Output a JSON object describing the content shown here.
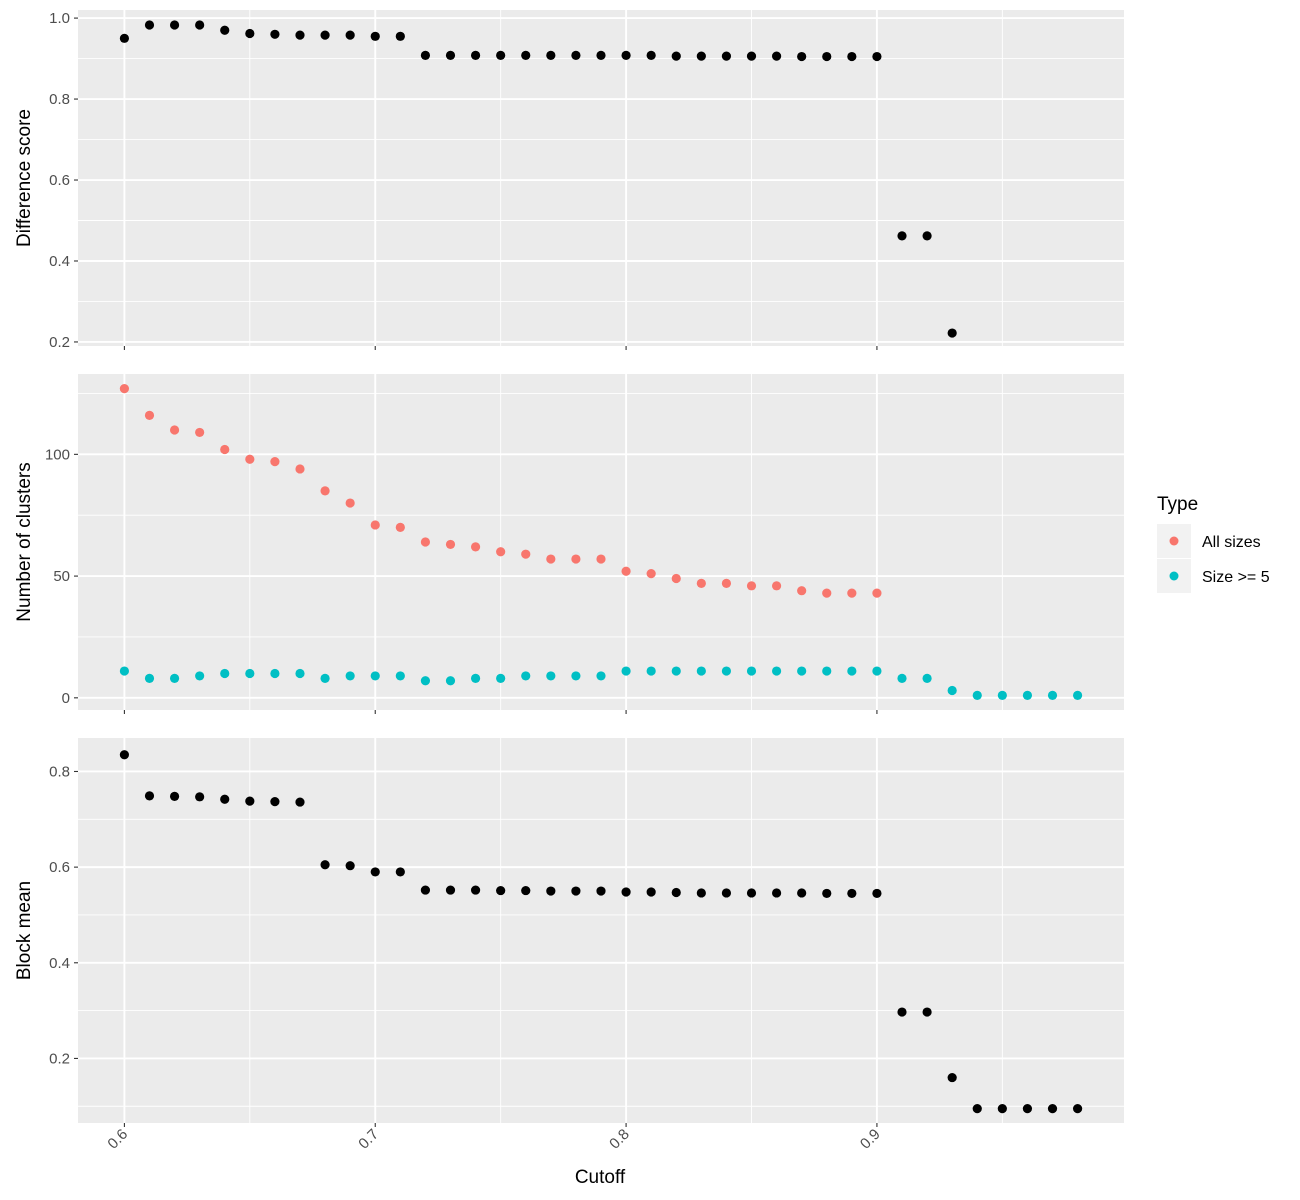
{
  "chart_data": [
    {
      "type": "scatter",
      "ylabel": "Difference score",
      "ylim": [
        0.19,
        1.02
      ],
      "yticks": [
        0.2,
        0.4,
        0.6,
        0.8,
        1.0
      ],
      "ytick_labels": [
        "0.2",
        "0.4",
        "0.6",
        "0.8",
        "1.0"
      ],
      "series": [
        {
          "color": "#000000",
          "x": [
            0.6,
            0.61,
            0.62,
            0.63,
            0.64,
            0.65,
            0.66,
            0.67,
            0.68,
            0.69,
            0.7,
            0.71,
            0.72,
            0.73,
            0.74,
            0.75,
            0.76,
            0.77,
            0.78,
            0.79,
            0.8,
            0.81,
            0.82,
            0.83,
            0.84,
            0.85,
            0.86,
            0.87,
            0.88,
            0.89,
            0.9,
            0.91,
            0.92,
            0.93
          ],
          "y": [
            0.95,
            0.983,
            0.983,
            0.983,
            0.97,
            0.962,
            0.96,
            0.958,
            0.958,
            0.958,
            0.955,
            0.955,
            0.908,
            0.908,
            0.908,
            0.908,
            0.908,
            0.908,
            0.908,
            0.908,
            0.908,
            0.908,
            0.906,
            0.906,
            0.906,
            0.906,
            0.906,
            0.905,
            0.905,
            0.905,
            0.905,
            0.462,
            0.462,
            0.222
          ]
        }
      ]
    },
    {
      "type": "scatter",
      "ylabel": "Number of clusters",
      "ylim": [
        -5,
        133
      ],
      "yticks": [
        0,
        50,
        100
      ],
      "ytick_labels": [
        "0",
        "50",
        "100"
      ],
      "series": [
        {
          "name": "All sizes",
          "color": "#F8766D",
          "x": [
            0.6,
            0.61,
            0.62,
            0.63,
            0.64,
            0.65,
            0.66,
            0.67,
            0.68,
            0.69,
            0.7,
            0.71,
            0.72,
            0.73,
            0.74,
            0.75,
            0.76,
            0.77,
            0.78,
            0.79,
            0.8,
            0.81,
            0.82,
            0.83,
            0.84,
            0.85,
            0.86,
            0.87,
            0.88,
            0.89,
            0.9
          ],
          "y": [
            127,
            116,
            110,
            109,
            102,
            98,
            97,
            94,
            85,
            80,
            71,
            70,
            64,
            63,
            62,
            60,
            59,
            57,
            57,
            57,
            52,
            51,
            49,
            47,
            47,
            46,
            46,
            44,
            43,
            43,
            43
          ]
        },
        {
          "name": "Size >= 5",
          "color": "#00BFC4",
          "x": [
            0.6,
            0.61,
            0.62,
            0.63,
            0.64,
            0.65,
            0.66,
            0.67,
            0.68,
            0.69,
            0.7,
            0.71,
            0.72,
            0.73,
            0.74,
            0.75,
            0.76,
            0.77,
            0.78,
            0.79,
            0.8,
            0.81,
            0.82,
            0.83,
            0.84,
            0.85,
            0.86,
            0.87,
            0.88,
            0.89,
            0.9,
            0.91,
            0.92,
            0.93,
            0.94,
            0.95,
            0.96,
            0.97,
            0.98
          ],
          "y": [
            11,
            8,
            8,
            9,
            10,
            10,
            10,
            10,
            8,
            9,
            9,
            9,
            7,
            7,
            8,
            8,
            9,
            9,
            9,
            9,
            11,
            11,
            11,
            11,
            11,
            11,
            11,
            11,
            11,
            11,
            11,
            8,
            8,
            3,
            1,
            1,
            1,
            1,
            1
          ]
        }
      ]
    },
    {
      "type": "scatter",
      "ylabel": "Block mean",
      "xlabel": "Cutoff",
      "ylim": [
        0.065,
        0.87
      ],
      "yticks": [
        0.2,
        0.4,
        0.6,
        0.8
      ],
      "ytick_labels": [
        "0.2",
        "0.4",
        "0.6",
        "0.8"
      ],
      "series": [
        {
          "color": "#000000",
          "x": [
            0.6,
            0.61,
            0.62,
            0.63,
            0.64,
            0.65,
            0.66,
            0.67,
            0.68,
            0.69,
            0.7,
            0.71,
            0.72,
            0.73,
            0.74,
            0.75,
            0.76,
            0.77,
            0.78,
            0.79,
            0.8,
            0.81,
            0.82,
            0.83,
            0.84,
            0.85,
            0.86,
            0.87,
            0.88,
            0.89,
            0.9,
            0.91,
            0.92,
            0.93,
            0.94,
            0.95,
            0.96,
            0.97,
            0.98
          ],
          "y": [
            0.835,
            0.749,
            0.748,
            0.747,
            0.742,
            0.738,
            0.737,
            0.736,
            0.605,
            0.603,
            0.59,
            0.59,
            0.552,
            0.552,
            0.552,
            0.551,
            0.551,
            0.55,
            0.55,
            0.55,
            0.548,
            0.548,
            0.547,
            0.546,
            0.546,
            0.546,
            0.546,
            0.546,
            0.545,
            0.545,
            0.545,
            0.297,
            0.297,
            0.16,
            0.095,
            0.095,
            0.095,
            0.095,
            0.095
          ]
        }
      ]
    }
  ],
  "shared_x": {
    "xlim": [
      0.5815,
      0.9985
    ],
    "xticks": [
      0.6,
      0.7,
      0.8,
      0.9
    ],
    "xtick_labels": [
      "0.6",
      "0.7",
      "0.8",
      "0.9"
    ],
    "xlabel": "Cutoff"
  },
  "legend": {
    "title": "Type",
    "items": [
      {
        "label": "All sizes",
        "color": "#F8766D"
      },
      {
        "label": "Size >= 5",
        "color": "#00BFC4"
      }
    ]
  },
  "style": {
    "panel_bg": "#EBEBEB",
    "grid_major": "#FFFFFF",
    "tick_color": "#333333"
  }
}
